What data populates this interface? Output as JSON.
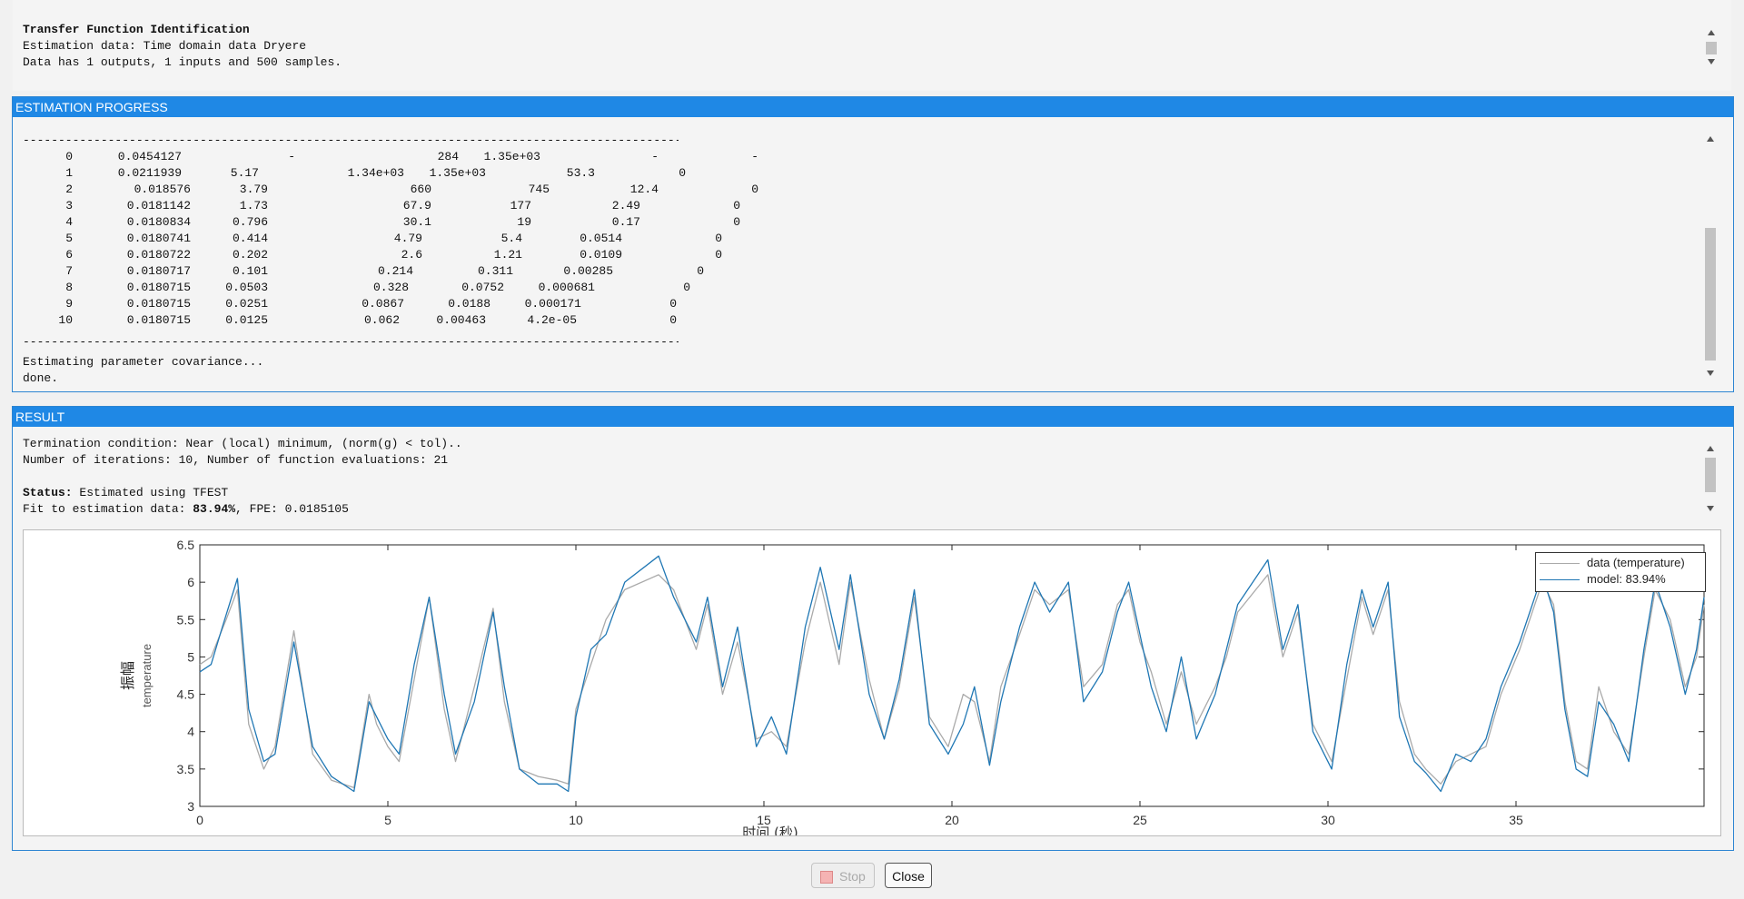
{
  "header": {
    "title": "Transfer Function Identification",
    "line2": "Estimation data: Time domain data Dryere",
    "line3": "Data has 1 outputs, 1 inputs and 500 samples."
  },
  "progress": {
    "title": "ESTIMATION PROGRESS",
    "dash_line": "------------------------------------------------------------------------------------------------------",
    "rows": [
      [
        "0",
        "0.0454127",
        "-",
        "284",
        "1.35e+03",
        "-",
        "-"
      ],
      [
        "1",
        "0.0211939",
        "5.17",
        "1.34e+03",
        "1.35e+03",
        "53.3",
        "0"
      ],
      [
        "2",
        "0.018576",
        "3.79",
        "660",
        "745",
        "12.4",
        "0"
      ],
      [
        "3",
        "0.0181142",
        "1.73",
        "67.9",
        "177",
        "2.49",
        "0"
      ],
      [
        "4",
        "0.0180834",
        "0.796",
        "30.1",
        "19",
        "0.17",
        "0"
      ],
      [
        "5",
        "0.0180741",
        "0.414",
        "4.79",
        "5.4",
        "0.0514",
        "0"
      ],
      [
        "6",
        "0.0180722",
        "0.202",
        "2.6",
        "1.21",
        "0.0109",
        "0"
      ],
      [
        "7",
        "0.0180717",
        "0.101",
        "0.214",
        "0.311",
        "0.00285",
        "0"
      ],
      [
        "8",
        "0.0180715",
        "0.0503",
        "0.328",
        "0.0752",
        "0.000681",
        "0"
      ],
      [
        "9",
        "0.0180715",
        "0.0251",
        "0.0867",
        "0.0188",
        "0.000171",
        "0"
      ],
      [
        "10",
        "0.0180715",
        "0.0125",
        "0.062",
        "0.00463",
        "4.2e-05",
        "0"
      ]
    ],
    "footer1": "Estimating parameter covariance...",
    "footer2": "done."
  },
  "result": {
    "title": "RESULT",
    "termination": "Termination condition: Near (local) minimum, (norm(g) < tol)..",
    "iterations": "Number of iterations: 10, Number of function evaluations: 21",
    "status_label": "Status:",
    "status_value": " Estimated using TFEST",
    "fit_prefix": "Fit to estimation data: ",
    "fit_value": "83.94%",
    "fit_suffix": ", FPE: 0.0185105"
  },
  "chart_data": {
    "type": "line",
    "ylabel_cn": "振幅",
    "ylabel": "temperature",
    "xlabel": "时间 (秒)",
    "xlim": [
      0,
      40
    ],
    "ylim": [
      3,
      6.5
    ],
    "xticks": [
      "0",
      "5",
      "10",
      "15",
      "20",
      "25",
      "30",
      "35"
    ],
    "yticks": [
      "3",
      "3.5",
      "4",
      "4.5",
      "5",
      "5.5",
      "6",
      "6.5"
    ],
    "legend": [
      "data (temperature)",
      "model: 83.94%"
    ],
    "colors": {
      "data": "#aaaaaa",
      "model": "#1f77b4"
    },
    "series": [
      {
        "name": "model: 83.94%",
        "x": [
          0,
          0.3,
          0.6,
          1,
          1.3,
          1.7,
          2,
          2.5,
          3,
          3.5,
          4.1,
          4.5,
          4.7,
          5,
          5.3,
          5.7,
          6.1,
          6.5,
          6.8,
          7.3,
          7.8,
          8.1,
          8.5,
          9,
          9.5,
          9.8,
          10,
          10.4,
          10.8,
          11.3,
          12.2,
          12.6,
          13.2,
          13.5,
          13.9,
          14.3,
          14.8,
          15.2,
          15.6,
          16.1,
          16.5,
          17,
          17.3,
          17.8,
          18.2,
          18.6,
          19,
          19.4,
          19.9,
          20.3,
          20.6,
          21,
          21.3,
          21.8,
          22.2,
          22.6,
          23.1,
          23.5,
          24,
          24.4,
          24.7,
          25,
          25.3,
          25.7,
          26.1,
          26.5,
          27,
          27.3,
          27.6,
          28.4,
          28.8,
          29.2,
          29.6,
          30.1,
          30.5,
          30.9,
          31.2,
          31.6,
          31.9,
          32.3,
          32.6,
          33,
          33.4,
          33.8,
          34.2,
          34.6,
          35.1,
          35.7,
          36,
          36.3,
          36.6,
          36.9,
          37.2,
          37.6,
          38,
          38.4,
          38.7,
          39.1,
          39.5,
          39.8,
          40
        ],
        "y": [
          4.8,
          4.9,
          5.4,
          6.05,
          4.3,
          3.6,
          3.7,
          5.2,
          3.8,
          3.4,
          3.2,
          4.4,
          4.2,
          3.9,
          3.7,
          4.9,
          5.8,
          4.5,
          3.7,
          4.4,
          5.6,
          4.6,
          3.5,
          3.3,
          3.3,
          3.2,
          4.2,
          5.1,
          5.3,
          6.0,
          6.35,
          5.8,
          5.2,
          5.8,
          4.6,
          5.4,
          3.8,
          4.2,
          3.7,
          5.4,
          6.2,
          5.1,
          6.1,
          4.5,
          3.9,
          4.7,
          5.9,
          4.1,
          3.7,
          4.1,
          4.6,
          3.55,
          4.4,
          5.4,
          6.0,
          5.6,
          6.0,
          4.4,
          4.8,
          5.6,
          6.0,
          5.3,
          4.6,
          4.0,
          5.0,
          3.9,
          4.5,
          5.1,
          5.7,
          6.3,
          5.1,
          5.7,
          4.0,
          3.5,
          4.9,
          5.9,
          5.4,
          6.0,
          4.2,
          3.6,
          3.45,
          3.2,
          3.7,
          3.6,
          3.9,
          4.6,
          5.2,
          6.1,
          5.6,
          4.3,
          3.5,
          3.4,
          4.4,
          4.1,
          3.6,
          5.1,
          6.0,
          5.4,
          4.5,
          5.1,
          5.8
        ]
      },
      {
        "name": "data (temperature)",
        "x": [
          0,
          0.3,
          0.7,
          1,
          1.3,
          1.7,
          2,
          2.5,
          3,
          3.5,
          4.1,
          4.5,
          4.7,
          5,
          5.3,
          5.7,
          6.1,
          6.5,
          6.8,
          7.3,
          7.8,
          8.1,
          8.5,
          9,
          9.5,
          9.8,
          10,
          10.4,
          10.8,
          11.3,
          12.2,
          12.6,
          13.2,
          13.5,
          13.9,
          14.3,
          14.8,
          15.2,
          15.6,
          16.1,
          16.5,
          17,
          17.3,
          17.8,
          18.2,
          18.6,
          19,
          19.4,
          19.9,
          20.3,
          20.6,
          21,
          21.3,
          21.8,
          22.2,
          22.6,
          23.1,
          23.5,
          24,
          24.4,
          24.7,
          25,
          25.3,
          25.7,
          26.1,
          26.5,
          27,
          27.3,
          27.6,
          28.4,
          28.8,
          29.2,
          29.6,
          30.1,
          30.5,
          30.9,
          31.2,
          31.6,
          31.9,
          32.3,
          32.6,
          33,
          33.4,
          33.8,
          34.2,
          34.6,
          35.1,
          35.7,
          36,
          36.3,
          36.6,
          36.9,
          37.2,
          37.6,
          38,
          38.4,
          38.7,
          39.1,
          39.5,
          39.8,
          40
        ],
        "y": [
          4.9,
          5.0,
          5.5,
          5.9,
          4.1,
          3.5,
          3.8,
          5.35,
          3.7,
          3.35,
          3.25,
          4.5,
          4.1,
          3.8,
          3.6,
          4.7,
          5.8,
          4.3,
          3.6,
          4.6,
          5.65,
          4.4,
          3.5,
          3.4,
          3.35,
          3.3,
          4.3,
          4.9,
          5.5,
          5.9,
          6.1,
          5.9,
          5.1,
          5.7,
          4.5,
          5.2,
          3.9,
          4.0,
          3.8,
          5.2,
          6.0,
          4.9,
          6.0,
          4.7,
          3.9,
          4.6,
          5.8,
          4.2,
          3.8,
          4.5,
          4.4,
          3.6,
          4.6,
          5.3,
          5.9,
          5.7,
          5.9,
          4.6,
          4.9,
          5.7,
          5.9,
          5.2,
          4.8,
          4.1,
          4.8,
          4.1,
          4.6,
          5.0,
          5.6,
          6.1,
          5.0,
          5.6,
          4.1,
          3.6,
          4.7,
          5.8,
          5.3,
          5.9,
          4.4,
          3.7,
          3.5,
          3.3,
          3.6,
          3.7,
          3.8,
          4.5,
          5.1,
          6.0,
          5.7,
          4.4,
          3.6,
          3.5,
          4.6,
          4.0,
          3.7,
          5.0,
          5.9,
          5.5,
          4.6,
          5.0,
          5.7
        ]
      }
    ]
  }
}
